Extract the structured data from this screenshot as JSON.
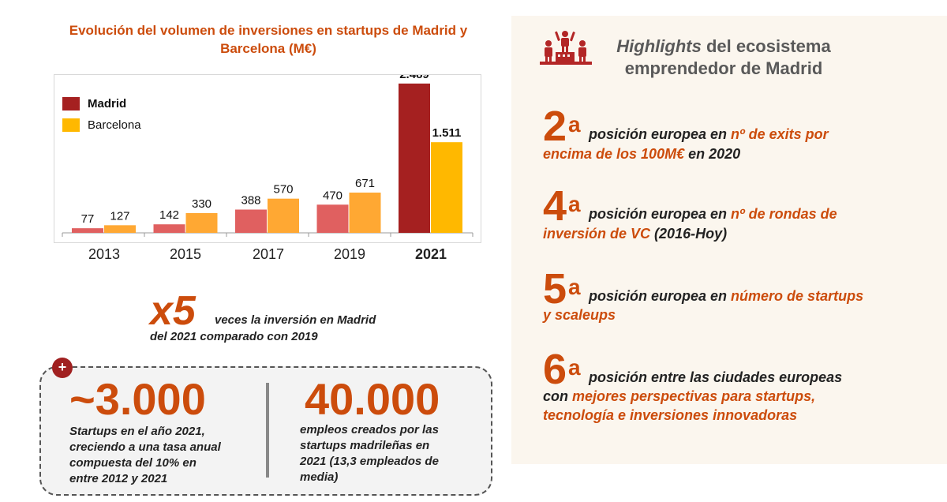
{
  "chart_data": {
    "type": "bar",
    "title": "Evolución  del volumen de inversiones en startups de Madrid y Barcelona (M€)",
    "categories": [
      "2013",
      "2015",
      "2017",
      "2019",
      "2021"
    ],
    "series": [
      {
        "name": "Madrid",
        "values": [
          77,
          142,
          388,
          470,
          2489
        ],
        "labels": [
          "77",
          "142",
          "388",
          "470",
          "2.489"
        ]
      },
      {
        "name": "Barcelona",
        "values": [
          127,
          330,
          570,
          671,
          1511
        ],
        "labels": [
          "127",
          "330",
          "570",
          "671",
          "1.511"
        ]
      }
    ],
    "colors": {
      "madrid_regular": "#e06060",
      "madrid_highlight": "#a52020",
      "barcelona_regular": "#ffa833",
      "barcelona_highlight": "#ffb800"
    },
    "highlight_category": "2021",
    "legend_position": "top-left",
    "ylim": [
      0,
      2500
    ],
    "grid": false
  },
  "growth": {
    "multiplier": "x5",
    "line1": "veces la inversión en Madrid",
    "line2": "del 2021 comparado con 2019"
  },
  "stats": {
    "plus_label": "+",
    "startups": {
      "value": "~3.000",
      "lines": [
        "Startups en el año 2021,",
        "creciendo a una tasa anual",
        "compuesta del 10% en",
        "entre 2012 y 2021"
      ]
    },
    "jobs": {
      "value": "40.000",
      "lines": [
        "empleos creados por las",
        "startups madrileñas en",
        "2021 (13,3 empleados de",
        "media)"
      ]
    }
  },
  "highlights": {
    "icon": "podium-icon",
    "title_italic": "Highlights",
    "title_rest": " del ecosistema",
    "title_line2": "emprendedor de Madrid",
    "items": [
      {
        "rank": "2",
        "suffix": "a",
        "l1_a": "posición europea en ",
        "l1_b": "nº de exits por",
        "l2_a": "encima de los 100M€",
        "l2_b": " en 2020"
      },
      {
        "rank": "4",
        "suffix": "a",
        "l1_a": "posición europea en ",
        "l1_b": "nº de rondas de",
        "l2_a": "inversión de VC",
        "l2_b": " (2016-Hoy)"
      },
      {
        "rank": "5",
        "suffix": "a",
        "l1_a": "posición europea en ",
        "l1_b": "número de startups",
        "l2_a": "y scaleups",
        "l2_b": ""
      },
      {
        "rank": "6",
        "suffix": "a",
        "l1_a": "posición entre las ciudades europeas",
        "l1_b": "",
        "l2_a": "con ",
        "l2_b": "mejores perspectivas para startups,",
        "l3": "tecnología e inversiones innovadoras"
      }
    ],
    "colors": {
      "accent": "#cc4c0c",
      "panel_bg": "#fbf6ee"
    }
  }
}
